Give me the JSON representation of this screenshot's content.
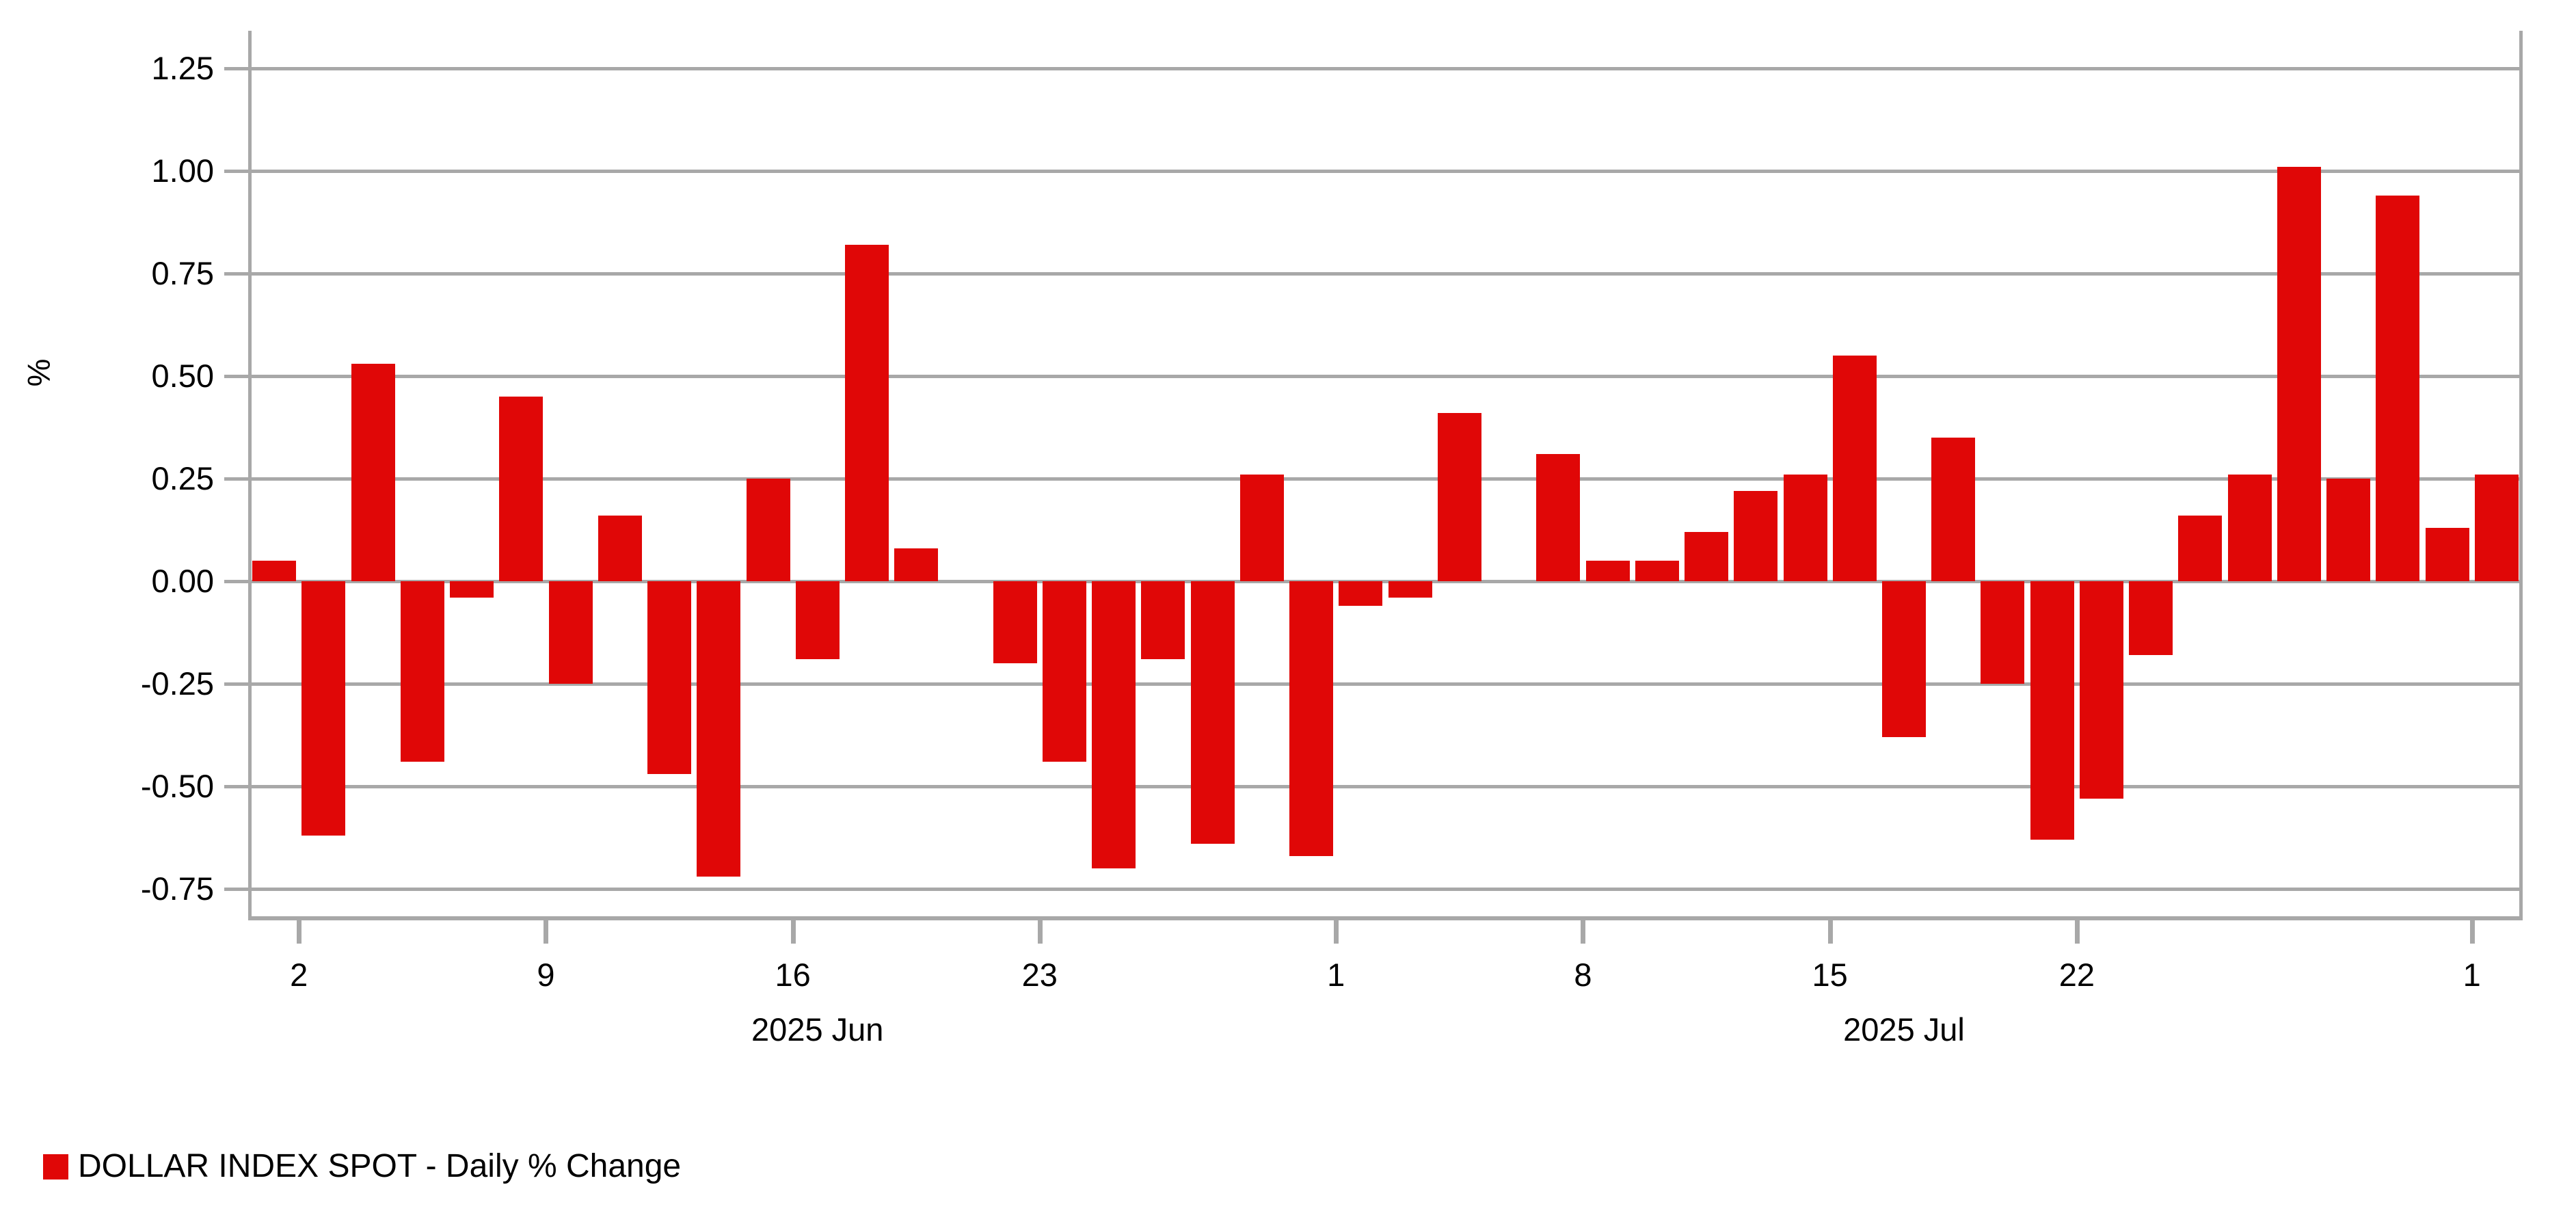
{
  "chart_data": {
    "type": "bar",
    "title": "",
    "ylabel": "%",
    "legend_label": "DOLLAR INDEX SPOT - Daily % Change",
    "bar_color": "#e00707",
    "grid_color": "#a8a8a8",
    "categories": [
      "May 30",
      "Jun 2",
      "Jun 3",
      "Jun 4",
      "Jun 5",
      "Jun 6",
      "Jun 9",
      "Jun 10",
      "Jun 11",
      "Jun 12",
      "Jun 13",
      "Jun 16",
      "Jun 17",
      "Jun 18",
      "Jun 19",
      "Jun 20",
      "Jun 23",
      "Jun 24",
      "Jun 25",
      "Jun 26",
      "Jun 27",
      "Jun 30",
      "Jul 1",
      "Jul 2",
      "Jul 3",
      "Jul 4",
      "Jul 7",
      "Jul 8",
      "Jul 9",
      "Jul 10",
      "Jul 11",
      "Jul 14",
      "Jul 15",
      "Jul 16",
      "Jul 17",
      "Jul 18",
      "Jul 21",
      "Jul 22",
      "Jul 23",
      "Jul 24",
      "Jul 25",
      "Jul 28",
      "Jul 29",
      "Jul 30",
      "Jul 31",
      "Aug 1"
    ],
    "values": [
      0.05,
      -0.62,
      0.53,
      -0.44,
      -0.04,
      0.45,
      -0.25,
      0.16,
      -0.47,
      -0.72,
      0.25,
      -0.19,
      0.82,
      0.08,
      0.0,
      -0.2,
      -0.44,
      -0.7,
      -0.19,
      -0.64,
      0.26,
      -0.67,
      -0.06,
      -0.04,
      0.41,
      0.0,
      0.31,
      0.05,
      0.05,
      0.12,
      0.22,
      0.26,
      0.55,
      -0.38,
      0.35,
      -0.25,
      -0.63,
      -0.53,
      -0.18,
      0.16,
      0.26,
      1.01,
      0.25,
      0.94,
      0.13,
      0.26
    ],
    "ylim": [
      -0.82,
      1.34
    ],
    "grid_on": true,
    "yticks": [
      {
        "v": 1.25,
        "label": "1.25"
      },
      {
        "v": 1.0,
        "label": "1.00"
      },
      {
        "v": 0.75,
        "label": "0.75"
      },
      {
        "v": 0.5,
        "label": "0.50"
      },
      {
        "v": 0.25,
        "label": "0.25"
      },
      {
        "v": 0.0,
        "label": "0.00"
      },
      {
        "v": -0.25,
        "label": "-0.25"
      },
      {
        "v": -0.5,
        "label": "-0.50"
      },
      {
        "v": -0.75,
        "label": "-0.75"
      }
    ],
    "xticks": [
      {
        "slot": 2,
        "label": "2"
      },
      {
        "slot": 7,
        "label": "9"
      },
      {
        "slot": 12,
        "label": "16"
      },
      {
        "slot": 17,
        "label": "23"
      },
      {
        "slot": 23,
        "label": "1"
      },
      {
        "slot": 28,
        "label": "8"
      },
      {
        "slot": 33,
        "label": "15"
      },
      {
        "slot": 38,
        "label": "22"
      },
      {
        "slot": 46,
        "label": "1"
      }
    ],
    "month_labels": [
      {
        "label": "2025 Jun",
        "from_slot": 2,
        "to_slot": 23
      },
      {
        "label": "2025 Jul",
        "from_slot": 23,
        "to_slot": 46
      }
    ],
    "legend_position": "bottom-left"
  }
}
